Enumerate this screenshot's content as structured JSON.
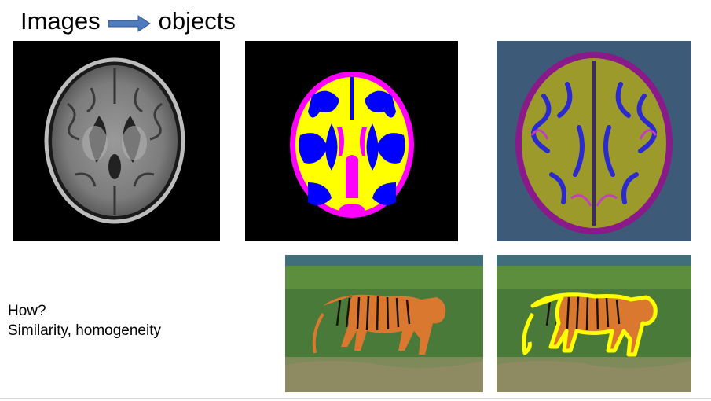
{
  "slide": {
    "title_left": "Images",
    "title_right": "objects",
    "caption_line1": "How?",
    "caption_line2": "Similarity, homogeneity"
  },
  "icons": {
    "title_arrow": "right-arrow-icon"
  },
  "colors": {
    "arrow_fill": "#4f7bbd",
    "segmentation_white_matter": "#ffff00",
    "segmentation_gray_matter": "#0000ff",
    "segmentation_csf": "#ff00ff",
    "render_background": "#3d5a78",
    "tiger_outline": "#ffff00"
  }
}
